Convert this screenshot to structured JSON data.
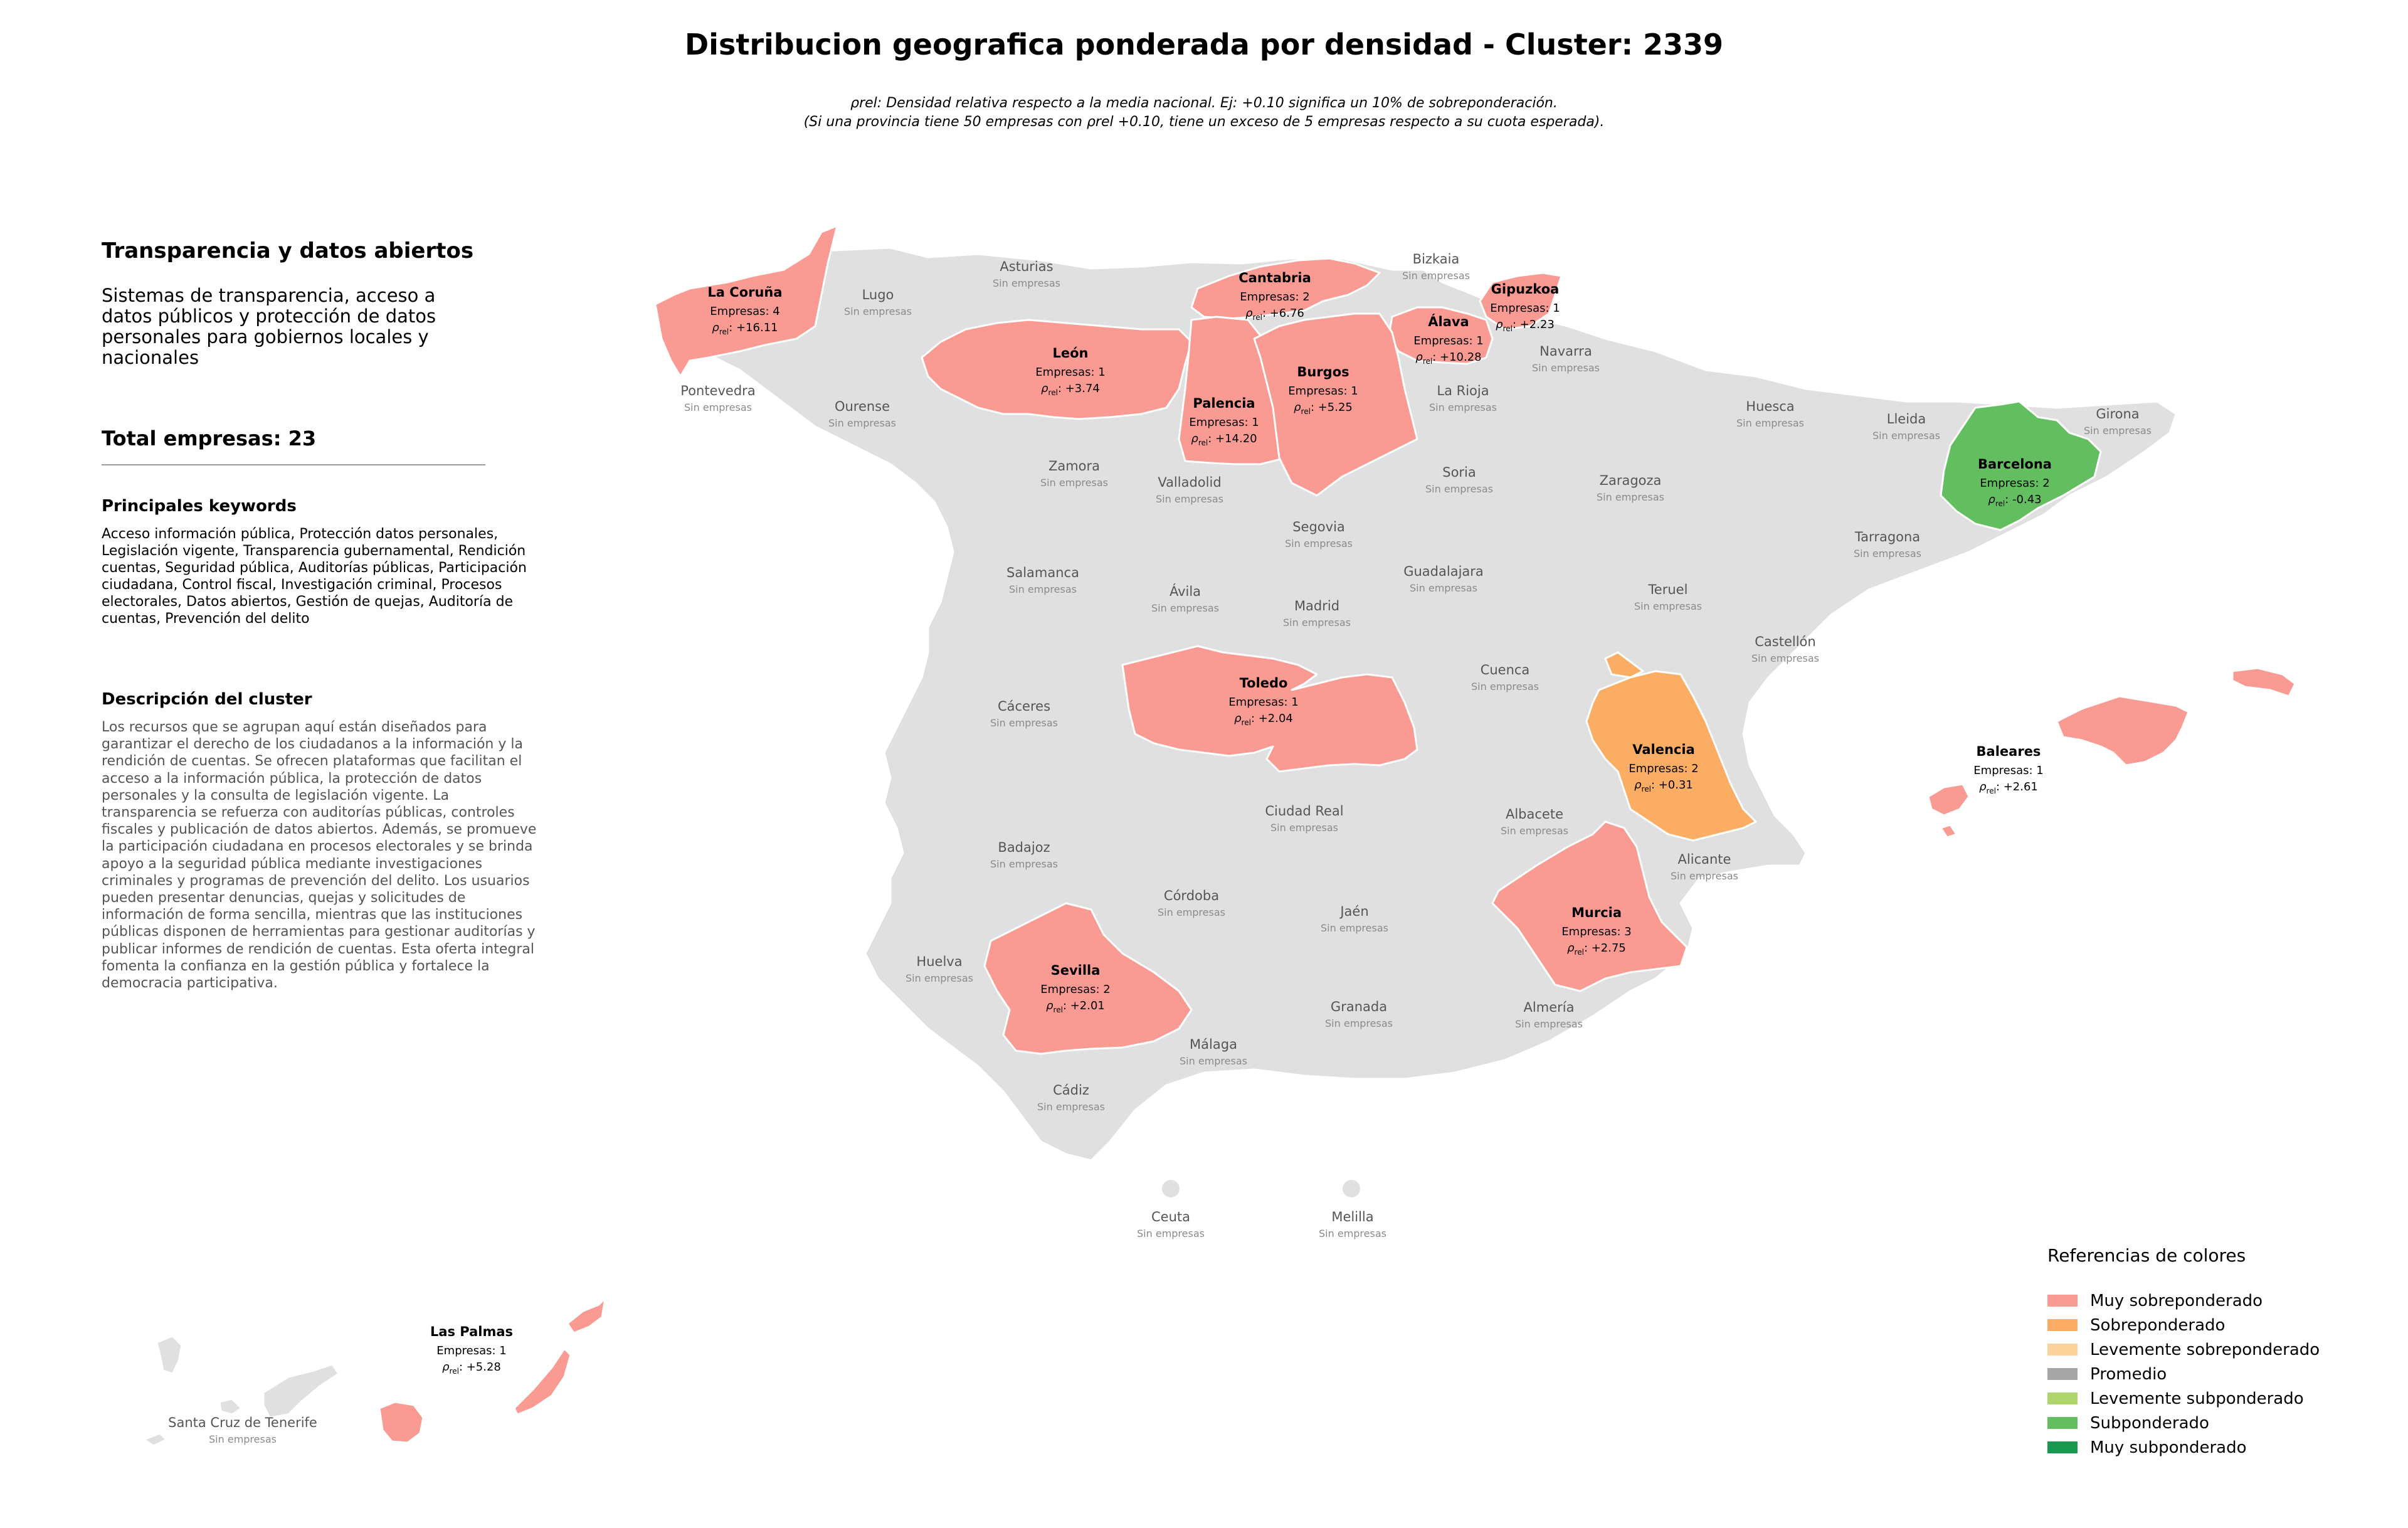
{
  "title": "Distribucion geografica ponderada por densidad - Cluster: 2339",
  "subtitle_line1": "ρrel: Densidad relativa respecto a la media nacional. Ej: +0.10 significa un 10% de sobreponderación.",
  "subtitle_line2": "(Si una provincia tiene 50 empresas con ρrel +0.10, tiene un exceso de 5 empresas respecto a su cuota esperada).",
  "sidebar": {
    "cluster_name": "Transparencia y datos abiertos",
    "cluster_summary": "Sistemas de transparencia, acceso a datos públicos y protección de datos personales para gobiernos locales y nacionales",
    "total_label": "Total empresas: 23",
    "keywords_heading": "Principales keywords",
    "keywords": "Acceso información pública, Protección datos personales, Legislación vigente, Transparencia gubernamental, Rendición cuentas, Seguridad pública, Auditorías públicas, Participación ciudadana, Control fiscal, Investigación criminal, Procesos electorales, Datos abiertos, Gestión de quejas, Auditoría de cuentas, Prevención del delito",
    "description_heading": "Descripción del cluster",
    "description": "Los recursos que se agrupan aquí están diseñados para garantizar el derecho de los ciudadanos a la información y la rendición de cuentas. Se ofrecen plataformas que facilitan el acceso a la información pública, la protección de datos personales y la consulta de legislación vigente. La transparencia se refuerza con auditorías públicas, controles fiscales y publicación de datos abiertos. Además, se promueve la participación ciudadana en procesos electorales y se brinda apoyo a la seguridad pública mediante investigaciones criminales y programas de prevención del delito. Los usuarios pueden presentar denuncias, quejas y solicitudes de información de forma sencilla, mientras que las instituciones públicas disponen de herramientas para gestionar auditorías y publicar informes de rendición de cuentas. Esta oferta integral fomenta la confianza en la gestión pública y fortalece la democracia participativa."
  },
  "colors": {
    "base": "#e0e0e0",
    "border": "#ffffff",
    "muy_sobre": "#f99b93",
    "sobre": "#fbad63",
    "levemente_sobre": "#fdd39b",
    "promedio": "#a6a6a6",
    "levemente_sub": "#aed66a",
    "sub": "#62be5f",
    "muy_sub": "#1a9850"
  },
  "legend": {
    "title": "Referencias de colores",
    "items": [
      {
        "label": "Muy sobreponderado",
        "color": "#f99b93"
      },
      {
        "label": "Sobreponderado",
        "color": "#fbad63"
      },
      {
        "label": "Levemente sobreponderado",
        "color": "#fdd39b"
      },
      {
        "label": "Promedio",
        "color": "#a6a6a6"
      },
      {
        "label": "Levemente subponderado",
        "color": "#aed66a"
      },
      {
        "label": "Subponderado",
        "color": "#62be5f"
      },
      {
        "label": "Muy subponderado",
        "color": "#1a9850"
      }
    ]
  },
  "map": {
    "empty_label": "Sin empresas",
    "provinces_with_data": [
      {
        "name": "La Coruña",
        "empresas_text": "Empresas: 4",
        "rho_text": "+16.11",
        "category": "muy_sobre"
      },
      {
        "name": "Cantabria",
        "empresas_text": "Empresas: 2",
        "rho_text": "+6.76",
        "category": "muy_sobre"
      },
      {
        "name": "Gipuzkoa",
        "empresas_text": "Empresas: 1",
        "rho_text": "+2.23",
        "category": "muy_sobre"
      },
      {
        "name": "Álava",
        "empresas_text": "Empresas: 1",
        "rho_text": "+10.28",
        "category": "muy_sobre"
      },
      {
        "name": "León",
        "empresas_text": "Empresas: 1",
        "rho_text": "+3.74",
        "category": "muy_sobre"
      },
      {
        "name": "Burgos",
        "empresas_text": "Empresas: 1",
        "rho_text": "+5.25",
        "category": "muy_sobre"
      },
      {
        "name": "Palencia",
        "empresas_text": "Empresas: 1",
        "rho_text": "+14.20",
        "category": "muy_sobre"
      },
      {
        "name": "Barcelona",
        "empresas_text": "Empresas: 2",
        "rho_text": "-0.43",
        "category": "sub"
      },
      {
        "name": "Toledo",
        "empresas_text": "Empresas: 1",
        "rho_text": "+2.04",
        "category": "muy_sobre"
      },
      {
        "name": "Valencia",
        "empresas_text": "Empresas: 2",
        "rho_text": "+0.31",
        "category": "sobre"
      },
      {
        "name": "Baleares",
        "empresas_text": "Empresas: 1",
        "rho_text": "+2.61",
        "category": "muy_sobre"
      },
      {
        "name": "Murcia",
        "empresas_text": "Empresas: 3",
        "rho_text": "+2.75",
        "category": "muy_sobre"
      },
      {
        "name": "Sevilla",
        "empresas_text": "Empresas: 2",
        "rho_text": "+2.01",
        "category": "muy_sobre"
      },
      {
        "name": "Las Palmas",
        "empresas_text": "Empresas: 1",
        "rho_text": "+5.28",
        "category": "muy_sobre"
      }
    ],
    "provinces_empty": [
      "Lugo",
      "Asturias",
      "Bizkaia",
      "Navarra",
      "Pontevedra",
      "Ourense",
      "La Rioja",
      "Huesca",
      "Lleida",
      "Girona",
      "Zamora",
      "Valladolid",
      "Soria",
      "Zaragoza",
      "Segovia",
      "Tarragona",
      "Salamanca",
      "Ávila",
      "Guadalajara",
      "Madrid",
      "Teruel",
      "Castellón",
      "Cuenca",
      "Cáceres",
      "Ciudad Real",
      "Albacete",
      "Badajoz",
      "Alicante",
      "Córdoba",
      "Jaén",
      "Huelva",
      "Granada",
      "Almería",
      "Málaga",
      "Cádiz",
      "Ceuta",
      "Melilla",
      "Santa Cruz de Tenerife"
    ]
  }
}
